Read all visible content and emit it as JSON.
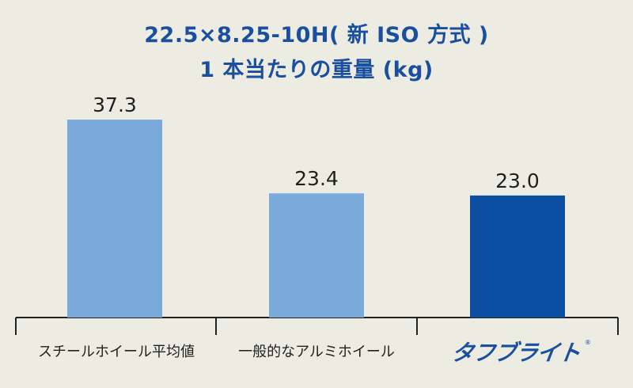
{
  "chart_data": {
    "type": "bar",
    "title_line_1": "22.5×8.25-10H( 新 ISO 方式 )",
    "title_line_2": "1 本当たりの重量 (kg)",
    "categories": [
      "スチールホイール平均値",
      "一般的なアルミホイール",
      "タフブライト"
    ],
    "values": [
      37.3,
      23.4,
      23.0
    ],
    "value_labels": [
      "37.3",
      "23.4",
      "23.0"
    ],
    "bar_colors": [
      "#7aa9dc",
      "#7aa9dc",
      "#0b4ea2"
    ],
    "ylim": [
      0,
      40
    ],
    "grid": false,
    "legend": "none",
    "brand": {
      "text": "タフブライト",
      "registered_mark": "®",
      "color": "#1a4f9f"
    }
  }
}
